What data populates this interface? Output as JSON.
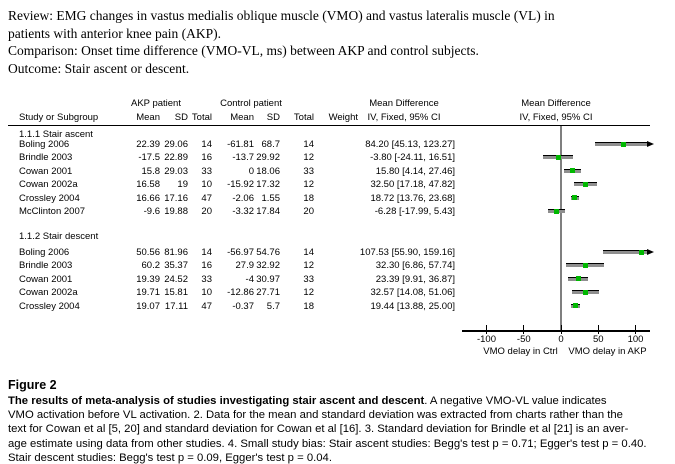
{
  "review": {
    "lines": [
      "Review: EMG changes in vastus medialis oblique muscle (VMO) and vastus lateralis muscle (VL) in",
      "patients with anterior knee pain (AKP).",
      "Comparison: Onset time difference (VMO-VL, ms) between AKP and control subjects.",
      "Outcome: Stair ascent or descent."
    ]
  },
  "table": {
    "group_headers": {
      "akp": "AKP patient",
      "control": "Control patient",
      "md_text": "Mean Difference",
      "md_plot": "Mean Difference",
      "iv_text": "IV, Fixed, 95% CI",
      "iv_plot": "IV, Fixed, 95% CI"
    },
    "columns": {
      "study": "Study or Subgroup",
      "mean1": "Mean",
      "sd1": "SD",
      "total1": "Total",
      "mean2": "Mean",
      "sd2": "SD",
      "total2": "Total",
      "weight": "Weight"
    },
    "subgroups": [
      {
        "label": "1.1.1 Stair ascent",
        "rows": [
          {
            "study": "Boling 2006",
            "m1": "22.39",
            "sd1": "29.06",
            "n1": "14",
            "m2": "-61.81",
            "sd2": "68.7",
            "n2": "14",
            "wt": "",
            "ci": "84.20 [45.13, 123.27]"
          },
          {
            "study": "Brindle 2003",
            "m1": "-17.5",
            "sd1": "22.89",
            "n1": "16",
            "m2": "-13.7",
            "sd2": "29.92",
            "n2": "12",
            "wt": "",
            "ci": "-3.80 [-24.11, 16.51]"
          },
          {
            "study": "Cowan 2001",
            "m1": "15.8",
            "sd1": "29.03",
            "n1": "33",
            "m2": "0",
            "sd2": "18.06",
            "n2": "33",
            "wt": "",
            "ci": "15.80 [4.14, 27.46]"
          },
          {
            "study": "Cowan 2002a",
            "m1": "16.58",
            "sd1": "19",
            "n1": "10",
            "m2": "-15.92",
            "sd2": "17.32",
            "n2": "12",
            "wt": "",
            "ci": "32.50 [17.18, 47.82]"
          },
          {
            "study": "Crossley 2004",
            "m1": "16.66",
            "sd1": "17.16",
            "n1": "47",
            "m2": "-2.06",
            "sd2": "1.55",
            "n2": "18",
            "wt": "",
            "ci": "18.72 [13.76, 23.68]"
          },
          {
            "study": "McClinton 2007",
            "m1": "-9.6",
            "sd1": "19.88",
            "n1": "20",
            "m2": "-3.32",
            "sd2": "17.84",
            "n2": "20",
            "wt": "",
            "ci": "-6.28 [-17.99, 5.43]"
          }
        ]
      },
      {
        "label": "1.1.2 Stair descent",
        "rows": [
          {
            "study": "Boling 2006",
            "m1": "50.56",
            "sd1": "81.96",
            "n1": "14",
            "m2": "-56.97",
            "sd2": "54.76",
            "n2": "14",
            "wt": "",
            "ci": "107.53 [55.90, 159.16]"
          },
          {
            "study": "Brindle 2003",
            "m1": "60.2",
            "sd1": "35.37",
            "n1": "16",
            "m2": "27.9",
            "sd2": "32.92",
            "n2": "12",
            "wt": "",
            "ci": "32.30 [6.86, 57.74]"
          },
          {
            "study": "Cowan 2001",
            "m1": "19.39",
            "sd1": "24.52",
            "n1": "33",
            "m2": "-4",
            "sd2": "30.97",
            "n2": "33",
            "wt": "",
            "ci": "23.39 [9.91, 36.87]"
          },
          {
            "study": "Cowan 2002a",
            "m1": "19.71",
            "sd1": "15.81",
            "n1": "10",
            "m2": "-12.86",
            "sd2": "27.71",
            "n2": "12",
            "wt": "",
            "ci": "32.57 [14.08, 51.06]"
          },
          {
            "study": "Crossley 2004",
            "m1": "19.07",
            "sd1": "17.11",
            "n1": "47",
            "m2": "-0.37",
            "sd2": "5.7",
            "n2": "18",
            "wt": "",
            "ci": "19.44 [13.88, 25.00]"
          }
        ]
      }
    ]
  },
  "chart_data": {
    "type": "scatter",
    "subtype": "forest-plot",
    "title": "Mean Difference IV, Fixed, 95% CI",
    "xlim": [
      -132,
      117
    ],
    "ticks": [
      -100,
      -50,
      0,
      50,
      100
    ],
    "left_axis_label": "VMO delay in Ctrl",
    "right_axis_label": "VMO delay in AKP",
    "groups": [
      {
        "name": "1.1.1 Stair ascent",
        "points": [
          {
            "study": "Boling 2006",
            "md": 84.2,
            "lo": 45.13,
            "hi": 123.27
          },
          {
            "study": "Brindle 2003",
            "md": -3.8,
            "lo": -24.11,
            "hi": 16.51
          },
          {
            "study": "Cowan 2001",
            "md": 15.8,
            "lo": 4.14,
            "hi": 27.46
          },
          {
            "study": "Cowan 2002a",
            "md": 32.5,
            "lo": 17.18,
            "hi": 47.82
          },
          {
            "study": "Crossley 2004",
            "md": 18.72,
            "lo": 13.76,
            "hi": 23.68
          },
          {
            "study": "McClinton 2007",
            "md": -6.28,
            "lo": -17.99,
            "hi": 5.43
          }
        ]
      },
      {
        "name": "1.1.2 Stair descent",
        "points": [
          {
            "study": "Boling 2006",
            "md": 107.53,
            "lo": 55.9,
            "hi": 159.16
          },
          {
            "study": "Brindle 2003",
            "md": 32.3,
            "lo": 6.86,
            "hi": 57.74
          },
          {
            "study": "Cowan 2001",
            "md": 23.39,
            "lo": 9.91,
            "hi": 36.87
          },
          {
            "study": "Cowan 2002a",
            "md": 32.57,
            "lo": 14.08,
            "hi": 51.06
          },
          {
            "study": "Crossley 2004",
            "md": 19.44,
            "lo": 13.88,
            "hi": 25.0
          }
        ]
      }
    ]
  },
  "colors": {
    "marker_green": "#00b800",
    "ci_gray": "#8f8f8f",
    "zero_line_gray": "#7f7f7f"
  },
  "caption": {
    "figure_label": "Figure 2",
    "bold_lead": "The results of meta-analysis of studies investigating stair ascent and descent",
    "after_bold": ". A negative VMO-VL value indicates",
    "lines": [
      "VMO activation before VL activation. 2. Data for the mean and standard deviation was extracted from charts rather than the",
      "text for Cowan et al [5, 20] and standard deviation for Cowan et al [16]. 3. Standard deviation for Brindle et al [21] is an aver-",
      "age estimate using data from other studies. 4. Small study bias: Stair ascent studies: Begg's test p = 0.71; Egger's test p = 0.40.",
      "Stair descent studies: Begg's test p = 0.09, Egger's test p = 0.04."
    ]
  }
}
